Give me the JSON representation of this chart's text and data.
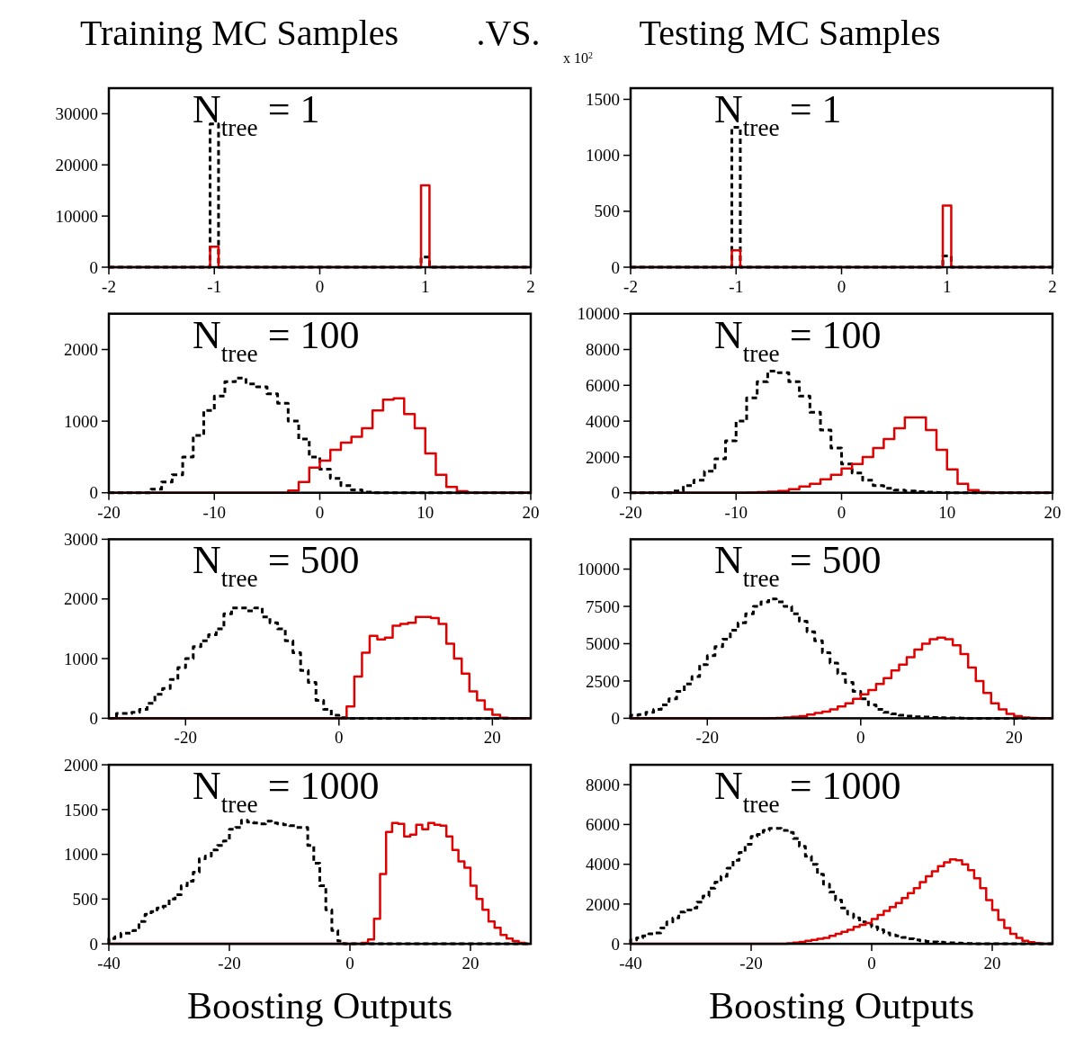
{
  "chart_data": [
    {
      "type": "histogram",
      "title": "Training MC Samples",
      "subtitle": ".VS.",
      "annotations": [
        "N$_{tree}$ = 1"
      ],
      "bins": [
        -2,
        -1.92,
        -1.84,
        -1.76,
        -1.68,
        -1.6,
        -1.52,
        -1.44,
        -1.36,
        -1.28,
        -1.2,
        -1.12,
        -1.04,
        -0.96,
        -0.88,
        -0.8,
        -0.72,
        -0.64,
        -0.56,
        -0.48,
        -0.4,
        -0.32,
        -0.24,
        -0.16,
        -0.08,
        0,
        0.08,
        0.16,
        0.24,
        0.32,
        0.4,
        0.48,
        0.56,
        0.64,
        0.72,
        0.8,
        0.88,
        0.96,
        1.04,
        1.12,
        1.2,
        1.28,
        1.36,
        1.44,
        1.52,
        1.6,
        1.68,
        1.76,
        1.84,
        1.92,
        2
      ],
      "series": [
        {
          "color": "#000000",
          "line_style": "dashed",
          "values": [
            0,
            0,
            0,
            0,
            0,
            0,
            0,
            0,
            0,
            0,
            0,
            0,
            28000,
            0,
            0,
            0,
            0,
            0,
            0,
            0,
            0,
            0,
            0,
            0,
            0,
            0,
            0,
            0,
            0,
            0,
            0,
            0,
            0,
            0,
            0,
            0,
            0,
            2000,
            0,
            0,
            0,
            0,
            0,
            0,
            0,
            0,
            0,
            0,
            0,
            0
          ]
        },
        {
          "color": "#e00000",
          "line_style": "solid",
          "values": [
            0,
            0,
            0,
            0,
            0,
            0,
            0,
            0,
            0,
            0,
            0,
            0,
            4000,
            0,
            0,
            0,
            0,
            0,
            0,
            0,
            0,
            0,
            0,
            0,
            0,
            0,
            0,
            0,
            0,
            0,
            0,
            0,
            0,
            0,
            0,
            0,
            0,
            16000,
            0,
            0,
            0,
            0,
            0,
            0,
            0,
            0,
            0,
            0,
            0,
            0
          ]
        }
      ],
      "xlim": [
        -2,
        2
      ],
      "xticks": [
        -2,
        -1,
        0,
        1,
        2
      ],
      "ylim": [
        0,
        35000
      ],
      "yticks": [
        0,
        10000,
        20000,
        30000
      ]
    },
    {
      "type": "histogram",
      "title": "Testing MC Samples",
      "ylabel": "x 10$^{2}$",
      "annotations": [
        "N$_{tree}$ = 1"
      ],
      "bins": [
        -2,
        -1.92,
        -1.84,
        -1.76,
        -1.68,
        -1.6,
        -1.52,
        -1.44,
        -1.36,
        -1.28,
        -1.2,
        -1.12,
        -1.04,
        -0.96,
        -0.88,
        -0.8,
        -0.72,
        -0.64,
        -0.56,
        -0.48,
        -0.4,
        -0.32,
        -0.24,
        -0.16,
        -0.08,
        0,
        0.08,
        0.16,
        0.24,
        0.32,
        0.4,
        0.48,
        0.56,
        0.64,
        0.72,
        0.8,
        0.88,
        0.96,
        1.04,
        1.12,
        1.2,
        1.28,
        1.36,
        1.44,
        1.52,
        1.6,
        1.68,
        1.76,
        1.84,
        1.92,
        2
      ],
      "series": [
        {
          "color": "#000000",
          "line_style": "dashed",
          "values": [
            0,
            0,
            0,
            0,
            0,
            0,
            0,
            0,
            0,
            0,
            0,
            0,
            1250,
            0,
            0,
            0,
            0,
            0,
            0,
            0,
            0,
            0,
            0,
            0,
            0,
            0,
            0,
            0,
            0,
            0,
            0,
            0,
            0,
            0,
            0,
            0,
            0,
            100,
            0,
            0,
            0,
            0,
            0,
            0,
            0,
            0,
            0,
            0,
            0,
            0
          ]
        },
        {
          "color": "#e00000",
          "line_style": "solid",
          "values": [
            0,
            0,
            0,
            0,
            0,
            0,
            0,
            0,
            0,
            0,
            0,
            0,
            150,
            0,
            0,
            0,
            0,
            0,
            0,
            0,
            0,
            0,
            0,
            0,
            0,
            0,
            0,
            0,
            0,
            0,
            0,
            0,
            0,
            0,
            0,
            0,
            0,
            550,
            0,
            0,
            0,
            0,
            0,
            0,
            0,
            0,
            0,
            0,
            0,
            0
          ]
        }
      ],
      "xlim": [
        -2,
        2
      ],
      "xticks": [
        -2,
        -1,
        0,
        1,
        2
      ],
      "ylim": [
        0,
        1600
      ],
      "yticks": [
        0,
        500,
        1000,
        1500
      ]
    },
    {
      "type": "histogram",
      "annotations": [
        "N$_{tree}$ = 100"
      ],
      "bins": [
        -20,
        -19,
        -18,
        -17,
        -16,
        -15,
        -14,
        -13,
        -12,
        -11,
        -10,
        -9,
        -8,
        -7,
        -6,
        -5,
        -4,
        -3,
        -2,
        -1,
        0,
        1,
        2,
        3,
        4,
        5,
        6,
        7,
        8,
        9,
        10,
        11,
        12,
        13,
        14,
        15,
        16,
        17,
        18,
        19,
        20
      ],
      "series": [
        {
          "color": "#000000",
          "line_style": "dashed",
          "values": [
            0,
            0,
            0,
            0,
            50,
            150,
            250,
            500,
            800,
            1150,
            1350,
            1550,
            1600,
            1520,
            1480,
            1380,
            1250,
            1000,
            750,
            500,
            330,
            200,
            100,
            40,
            10,
            0,
            0,
            0,
            0,
            0,
            0,
            0,
            0,
            0,
            0,
            0,
            0,
            0,
            0,
            0
          ]
        },
        {
          "color": "#e00000",
          "line_style": "solid",
          "values": [
            0,
            0,
            0,
            0,
            0,
            0,
            0,
            0,
            0,
            0,
            0,
            0,
            0,
            0,
            0,
            0,
            0,
            30,
            150,
            350,
            450,
            600,
            700,
            780,
            900,
            1150,
            1300,
            1320,
            1100,
            900,
            550,
            250,
            80,
            20,
            0,
            0,
            0,
            0,
            0,
            0
          ]
        }
      ],
      "xlim": [
        -20,
        20
      ],
      "xticks": [
        -20,
        -10,
        0,
        10,
        20
      ],
      "ylim": [
        0,
        2500
      ],
      "yticks": [
        0,
        1000,
        2000
      ]
    },
    {
      "type": "histogram",
      "annotations": [
        "N$_{tree}$ = 100"
      ],
      "bins": [
        -20,
        -19,
        -18,
        -17,
        -16,
        -15,
        -14,
        -13,
        -12,
        -11,
        -10,
        -9,
        -8,
        -7,
        -6,
        -5,
        -4,
        -3,
        -2,
        -1,
        0,
        1,
        2,
        3,
        4,
        5,
        6,
        7,
        8,
        9,
        10,
        11,
        12,
        13,
        14,
        15,
        16,
        17,
        18,
        19,
        20
      ],
      "series": [
        {
          "color": "#000000",
          "line_style": "dashed",
          "values": [
            0,
            0,
            0,
            0,
            100,
            400,
            700,
            1200,
            1900,
            2900,
            4000,
            5300,
            6200,
            6800,
            6700,
            6200,
            5400,
            4500,
            3500,
            2500,
            1600,
            1100,
            700,
            400,
            250,
            150,
            100,
            60,
            30,
            10,
            0,
            0,
            0,
            0,
            0,
            0,
            0,
            0,
            0,
            0
          ]
        },
        {
          "color": "#e00000",
          "line_style": "solid",
          "values": [
            0,
            0,
            0,
            0,
            0,
            0,
            0,
            0,
            0,
            0,
            0,
            10,
            30,
            60,
            100,
            200,
            350,
            500,
            750,
            1000,
            1350,
            1600,
            2000,
            2500,
            3000,
            3600,
            4200,
            4200,
            3500,
            2400,
            1300,
            500,
            150,
            40,
            0,
            0,
            0,
            0,
            0,
            0
          ]
        }
      ],
      "xlim": [
        -20,
        20
      ],
      "xticks": [
        -20,
        -10,
        0,
        10,
        20
      ],
      "ylim": [
        0,
        10000
      ],
      "yticks": [
        0,
        2000,
        4000,
        6000,
        8000,
        10000
      ]
    },
    {
      "type": "histogram",
      "annotations": [
        "N$_{tree}$ = 500"
      ],
      "bins": [
        -30,
        -29,
        -28,
        -27,
        -26,
        -25,
        -24,
        -23,
        -22,
        -21,
        -20,
        -19,
        -18,
        -17,
        -16,
        -15,
        -14,
        -13,
        -12,
        -11,
        -10,
        -9,
        -8,
        -7,
        -6,
        -5,
        -4,
        -3,
        -2,
        -1,
        0,
        1,
        2,
        3,
        4,
        5,
        6,
        7,
        8,
        9,
        10,
        11,
        12,
        13,
        14,
        15,
        16,
        17,
        18,
        19,
        20,
        21,
        22,
        23,
        24,
        25
      ],
      "series": [
        {
          "color": "#000000",
          "line_style": "dashed",
          "values": [
            0,
            80,
            80,
            100,
            150,
            250,
            400,
            500,
            650,
            850,
            1000,
            1200,
            1300,
            1400,
            1500,
            1750,
            1850,
            1850,
            1800,
            1850,
            1700,
            1600,
            1500,
            1300,
            1100,
            800,
            600,
            300,
            150,
            50,
            10,
            0,
            0,
            0,
            0,
            0,
            0,
            0,
            0,
            0,
            0,
            0,
            0,
            0,
            0,
            0,
            0,
            0,
            0,
            0,
            0,
            0,
            0,
            0,
            0
          ]
        },
        {
          "color": "#e00000",
          "line_style": "solid",
          "values": [
            0,
            0,
            0,
            0,
            0,
            0,
            0,
            0,
            0,
            0,
            0,
            0,
            0,
            0,
            0,
            0,
            0,
            0,
            0,
            0,
            0,
            0,
            0,
            0,
            0,
            0,
            0,
            0,
            0,
            0,
            0,
            200,
            700,
            1100,
            1380,
            1320,
            1350,
            1550,
            1580,
            1600,
            1700,
            1700,
            1680,
            1580,
            1250,
            1000,
            750,
            450,
            300,
            150,
            60,
            10,
            0,
            0,
            0
          ]
        }
      ],
      "xlim": [
        -30,
        25
      ],
      "xticks": [
        -20,
        0,
        20
      ],
      "ylim": [
        0,
        3000
      ],
      "yticks": [
        0,
        1000,
        2000,
        3000
      ]
    },
    {
      "type": "histogram",
      "annotations": [
        "N$_{tree}$ = 500"
      ],
      "bins": [
        -30,
        -29,
        -28,
        -27,
        -26,
        -25,
        -24,
        -23,
        -22,
        -21,
        -20,
        -19,
        -18,
        -17,
        -16,
        -15,
        -14,
        -13,
        -12,
        -11,
        -10,
        -9,
        -8,
        -7,
        -6,
        -5,
        -4,
        -3,
        -2,
        -1,
        0,
        1,
        2,
        3,
        4,
        5,
        6,
        7,
        8,
        9,
        10,
        11,
        12,
        13,
        14,
        15,
        16,
        17,
        18,
        19,
        20,
        21,
        22,
        23,
        24,
        25
      ],
      "series": [
        {
          "color": "#000000",
          "line_style": "dashed",
          "values": [
            200,
            250,
            400,
            600,
            900,
            1300,
            1800,
            2300,
            2800,
            3600,
            4200,
            4800,
            5300,
            5900,
            6400,
            7000,
            7500,
            7800,
            8000,
            7800,
            7500,
            7000,
            6500,
            5800,
            5200,
            4400,
            3700,
            3000,
            2400,
            1800,
            1300,
            900,
            600,
            400,
            300,
            200,
            150,
            100,
            80,
            60,
            40,
            30,
            20,
            10,
            0,
            0,
            0,
            0,
            0,
            0,
            0,
            0,
            0,
            0,
            0
          ]
        },
        {
          "color": "#e00000",
          "line_style": "solid",
          "values": [
            0,
            0,
            0,
            0,
            0,
            0,
            0,
            0,
            0,
            0,
            0,
            0,
            0,
            0,
            0,
            0,
            0,
            0,
            10,
            30,
            60,
            100,
            150,
            250,
            350,
            450,
            600,
            800,
            1000,
            1300,
            1600,
            1900,
            2300,
            2700,
            3200,
            3600,
            4100,
            4600,
            5000,
            5300,
            5400,
            5300,
            4900,
            4300,
            3400,
            2500,
            1700,
            1000,
            600,
            300,
            150,
            60,
            20,
            0,
            0
          ]
        }
      ],
      "xlim": [
        -30,
        25
      ],
      "xticks": [
        -20,
        0,
        20
      ],
      "ylim": [
        0,
        12000
      ],
      "yticks": [
        0,
        2500,
        5000,
        7500,
        10000
      ]
    },
    {
      "type": "histogram",
      "xlabel": "Boosting Outputs",
      "annotations": [
        "N$_{tree}$ = 1000"
      ],
      "bins": [
        -40,
        -39,
        -38,
        -37,
        -36,
        -35,
        -34,
        -33,
        -32,
        -31,
        -30,
        -29,
        -28,
        -27,
        -26,
        -25,
        -24,
        -23,
        -22,
        -21,
        -20,
        -19,
        -18,
        -17,
        -16,
        -15,
        -14,
        -13,
        -12,
        -11,
        -10,
        -9,
        -8,
        -7,
        -6,
        -5,
        -4,
        -3,
        -2,
        -1,
        0,
        1,
        2,
        3,
        4,
        5,
        6,
        7,
        8,
        9,
        10,
        11,
        12,
        13,
        14,
        15,
        16,
        17,
        18,
        19,
        20,
        21,
        22,
        23,
        24,
        25,
        26,
        27,
        28,
        29,
        30
      ],
      "series": [
        {
          "color": "#000000",
          "line_style": "dashed",
          "values": [
            60,
            80,
            120,
            120,
            150,
            250,
            330,
            360,
            400,
            420,
            500,
            550,
            650,
            700,
            800,
            950,
            980,
            1050,
            1100,
            1150,
            1280,
            1300,
            1380,
            1360,
            1350,
            1340,
            1370,
            1350,
            1340,
            1330,
            1320,
            1300,
            1300,
            1100,
            900,
            650,
            380,
            150,
            30,
            0,
            0,
            0,
            0,
            0,
            0,
            0,
            0,
            0,
            0,
            0,
            0,
            0,
            0,
            0,
            0,
            0,
            0,
            0,
            0,
            0,
            0,
            0,
            0,
            0,
            0,
            0,
            0,
            0,
            0,
            0
          ]
        },
        {
          "color": "#e00000",
          "line_style": "solid",
          "values": [
            0,
            0,
            0,
            0,
            0,
            0,
            0,
            0,
            0,
            0,
            0,
            0,
            0,
            0,
            0,
            0,
            0,
            0,
            0,
            0,
            0,
            0,
            0,
            0,
            0,
            0,
            0,
            0,
            0,
            0,
            0,
            0,
            0,
            0,
            0,
            0,
            0,
            0,
            0,
            0,
            0,
            0,
            10,
            50,
            280,
            780,
            1250,
            1350,
            1340,
            1200,
            1220,
            1330,
            1280,
            1350,
            1330,
            1320,
            1200,
            1050,
            920,
            850,
            650,
            500,
            380,
            250,
            180,
            100,
            60,
            30,
            10,
            0
          ]
        }
      ],
      "xlim": [
        -40,
        30
      ],
      "xticks": [
        -40,
        -20,
        0,
        20
      ],
      "ylim": [
        0,
        2000
      ],
      "yticks": [
        0,
        500,
        1000,
        1500,
        2000
      ]
    },
    {
      "type": "histogram",
      "xlabel": "Boosting Outputs",
      "annotations": [
        "N$_{tree}$ = 1000"
      ],
      "bins": [
        -40,
        -39,
        -38,
        -37,
        -36,
        -35,
        -34,
        -33,
        -32,
        -31,
        -30,
        -29,
        -28,
        -27,
        -26,
        -25,
        -24,
        -23,
        -22,
        -21,
        -20,
        -19,
        -18,
        -17,
        -16,
        -15,
        -14,
        -13,
        -12,
        -11,
        -10,
        -9,
        -8,
        -7,
        -6,
        -5,
        -4,
        -3,
        -2,
        -1,
        0,
        1,
        2,
        3,
        4,
        5,
        6,
        7,
        8,
        9,
        10,
        11,
        12,
        13,
        14,
        15,
        16,
        17,
        18,
        19,
        20,
        21,
        22,
        23,
        24,
        25,
        26,
        27,
        28,
        29,
        30
      ],
      "series": [
        {
          "color": "#000000",
          "line_style": "dashed",
          "values": [
            200,
            300,
            400,
            500,
            550,
            800,
            1100,
            1300,
            1600,
            1700,
            1800,
            2100,
            2400,
            2800,
            3100,
            3400,
            3800,
            4200,
            4600,
            5000,
            5400,
            5500,
            5700,
            5800,
            5800,
            5700,
            5600,
            5300,
            4900,
            4400,
            4000,
            3500,
            3000,
            2600,
            2200,
            1800,
            1500,
            1300,
            1100,
            1000,
            850,
            700,
            550,
            450,
            400,
            320,
            250,
            200,
            150,
            120,
            100,
            80,
            60,
            50,
            40,
            30,
            20,
            10,
            0,
            0,
            0,
            0,
            0,
            0,
            0,
            0,
            0,
            0,
            0,
            0
          ]
        },
        {
          "color": "#e00000",
          "line_style": "solid",
          "values": [
            0,
            0,
            0,
            0,
            0,
            0,
            0,
            0,
            0,
            0,
            0,
            0,
            0,
            0,
            0,
            0,
            0,
            0,
            0,
            0,
            0,
            0,
            0,
            0,
            0,
            10,
            30,
            60,
            100,
            150,
            200,
            250,
            300,
            400,
            500,
            600,
            700,
            850,
            950,
            1050,
            1250,
            1450,
            1650,
            1850,
            2050,
            2300,
            2550,
            2800,
            3100,
            3400,
            3650,
            3900,
            4100,
            4250,
            4200,
            4000,
            3700,
            3300,
            2800,
            2200,
            1700,
            1200,
            800,
            500,
            300,
            150,
            80,
            40,
            10,
            0
          ]
        }
      ],
      "xlim": [
        -40,
        30
      ],
      "xticks": [
        -40,
        -20,
        0,
        20
      ],
      "ylim": [
        0,
        9000
      ],
      "yticks": [
        0,
        2000,
        4000,
        6000,
        8000
      ]
    }
  ]
}
